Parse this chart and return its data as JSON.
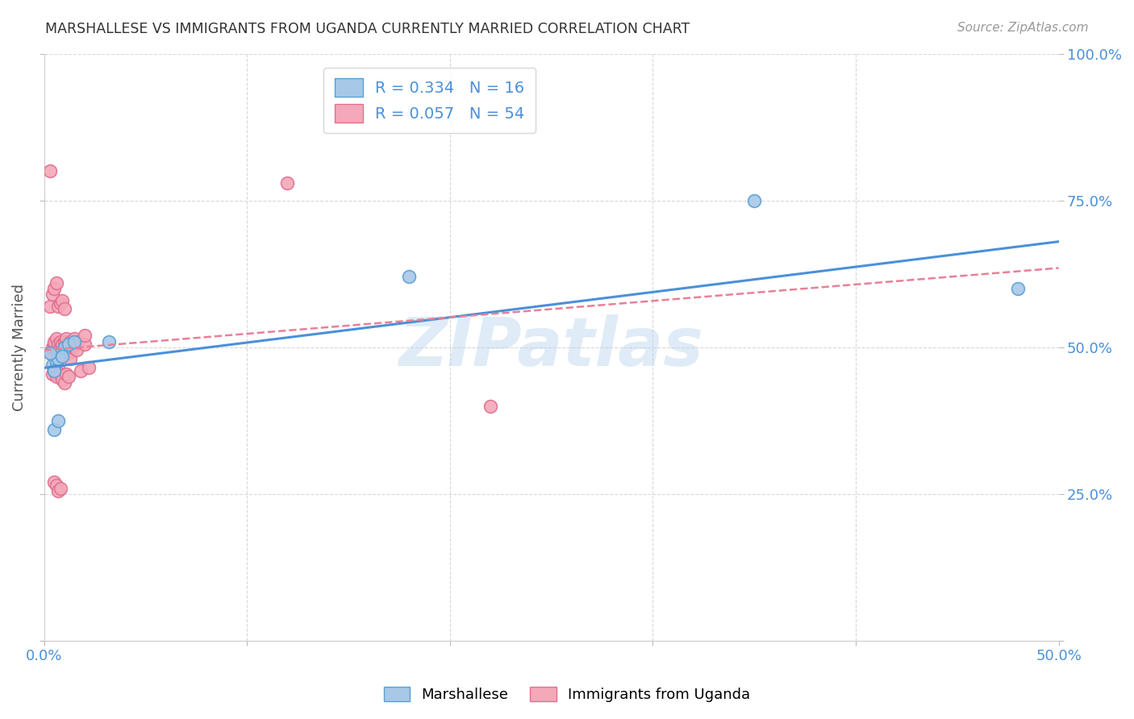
{
  "title": "MARSHALLESE VS IMMIGRANTS FROM UGANDA CURRENTLY MARRIED CORRELATION CHART",
  "source": "Source: ZipAtlas.com",
  "ylabel_label": "Currently Married",
  "xlim": [
    0.0,
    0.5
  ],
  "ylim": [
    0.0,
    1.0
  ],
  "xticks": [
    0.0,
    0.1,
    0.2,
    0.3,
    0.4,
    0.5
  ],
  "yticks": [
    0.0,
    0.25,
    0.5,
    0.75,
    1.0
  ],
  "xticklabels": [
    "0.0%",
    "",
    "",
    "",
    "",
    "50.0%"
  ],
  "yticklabels_right": [
    "",
    "25.0%",
    "50.0%",
    "75.0%",
    "100.0%"
  ],
  "blue_R": 0.334,
  "blue_N": 16,
  "pink_R": 0.057,
  "pink_N": 54,
  "blue_color": "#a8c8e8",
  "pink_color": "#f4a8b8",
  "blue_edge_color": "#5a9fd4",
  "pink_edge_color": "#e07090",
  "blue_line_color": "#4a90d9",
  "pink_line_color": "#e88098",
  "watermark": "ZIPatlas",
  "legend_label_blue": "Marshallese",
  "legend_label_pink": "Immigrants from Uganda",
  "blue_scatter_x": [
    0.004,
    0.006,
    0.008,
    0.01,
    0.005,
    0.007,
    0.003,
    0.009,
    0.012,
    0.015,
    0.005,
    0.007,
    0.032,
    0.18,
    0.48,
    0.35
  ],
  "blue_scatter_y": [
    0.47,
    0.475,
    0.49,
    0.5,
    0.46,
    0.48,
    0.49,
    0.485,
    0.505,
    0.51,
    0.36,
    0.375,
    0.51,
    0.62,
    0.6,
    0.75
  ],
  "pink_scatter_x": [
    0.003,
    0.004,
    0.005,
    0.005,
    0.006,
    0.006,
    0.007,
    0.007,
    0.008,
    0.008,
    0.009,
    0.009,
    0.01,
    0.01,
    0.01,
    0.011,
    0.011,
    0.012,
    0.012,
    0.013,
    0.013,
    0.014,
    0.015,
    0.015,
    0.016,
    0.017,
    0.018,
    0.02,
    0.02,
    0.022,
    0.004,
    0.005,
    0.006,
    0.007,
    0.008,
    0.009,
    0.01,
    0.011,
    0.012,
    0.003,
    0.004,
    0.005,
    0.006,
    0.007,
    0.008,
    0.009,
    0.01,
    0.12,
    0.005,
    0.006,
    0.007,
    0.008,
    0.22,
    0.003
  ],
  "pink_scatter_y": [
    0.49,
    0.5,
    0.505,
    0.51,
    0.495,
    0.515,
    0.505,
    0.49,
    0.5,
    0.51,
    0.495,
    0.505,
    0.5,
    0.51,
    0.49,
    0.505,
    0.515,
    0.49,
    0.5,
    0.51,
    0.48,
    0.5,
    0.505,
    0.515,
    0.495,
    0.51,
    0.46,
    0.505,
    0.52,
    0.465,
    0.455,
    0.46,
    0.45,
    0.465,
    0.455,
    0.445,
    0.44,
    0.455,
    0.45,
    0.57,
    0.59,
    0.6,
    0.61,
    0.57,
    0.575,
    0.58,
    0.565,
    0.78,
    0.27,
    0.265,
    0.255,
    0.26,
    0.4,
    0.8
  ],
  "background_color": "#ffffff",
  "grid_color": "#d8d8d8"
}
